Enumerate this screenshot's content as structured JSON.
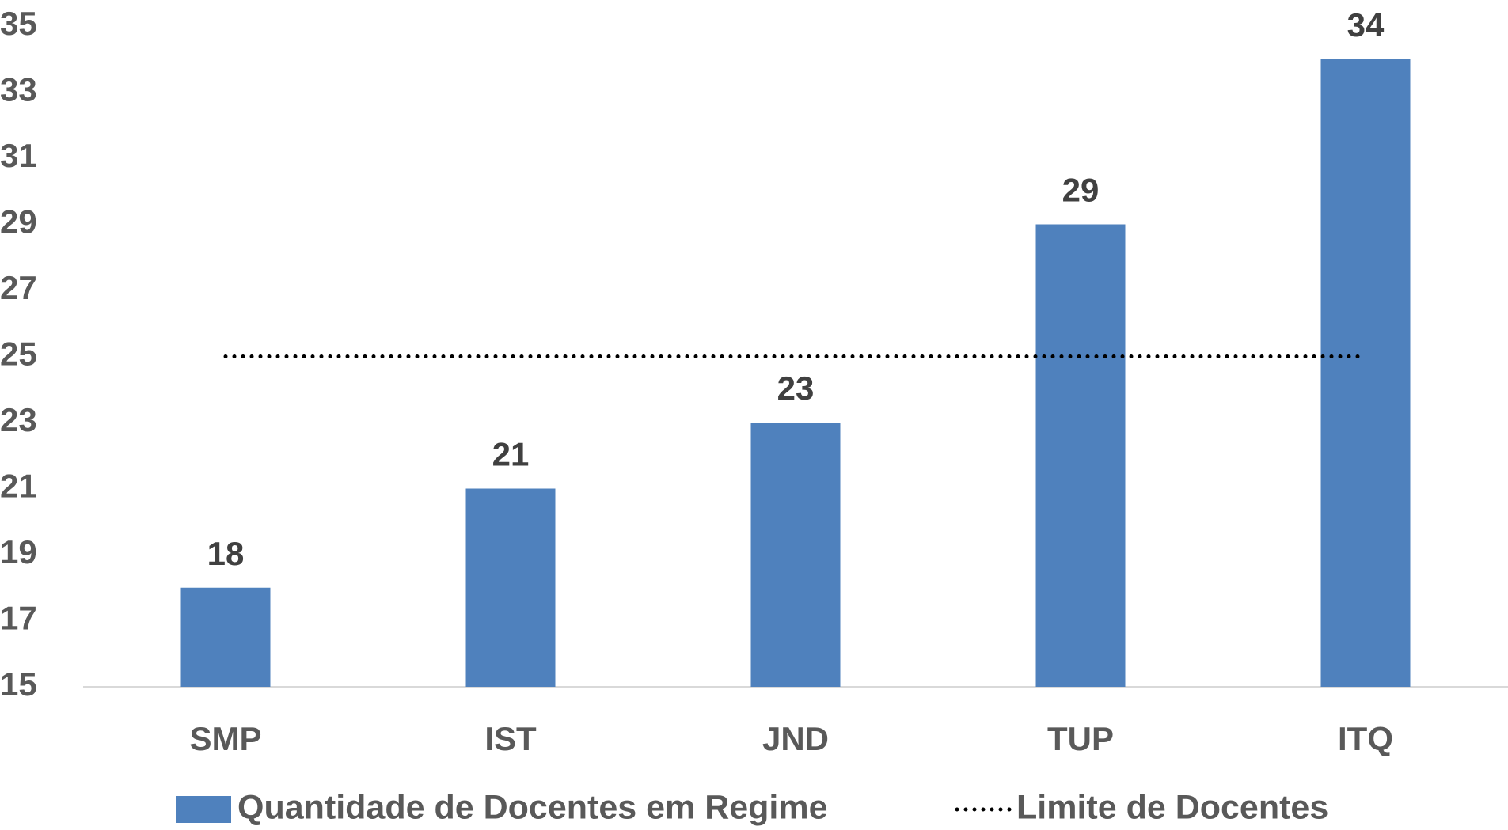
{
  "chart_data": {
    "type": "bar",
    "categories": [
      "SMP",
      "IST",
      "JND",
      "TUP",
      "ITQ"
    ],
    "series": [
      {
        "name": "Quantidade de Docentes em Regime",
        "type": "bar",
        "color": "#4f81bd",
        "values": [
          18,
          21,
          23,
          29,
          34
        ]
      },
      {
        "name": "Limite de Docentes",
        "type": "line",
        "color": "#000000",
        "values": [
          25,
          25,
          25,
          25,
          25
        ]
      }
    ],
    "ylim": [
      15,
      35
    ],
    "yticks": [
      15,
      17,
      19,
      21,
      23,
      25,
      27,
      29,
      31,
      33,
      35
    ],
    "grid": false,
    "legend": "bottom"
  }
}
